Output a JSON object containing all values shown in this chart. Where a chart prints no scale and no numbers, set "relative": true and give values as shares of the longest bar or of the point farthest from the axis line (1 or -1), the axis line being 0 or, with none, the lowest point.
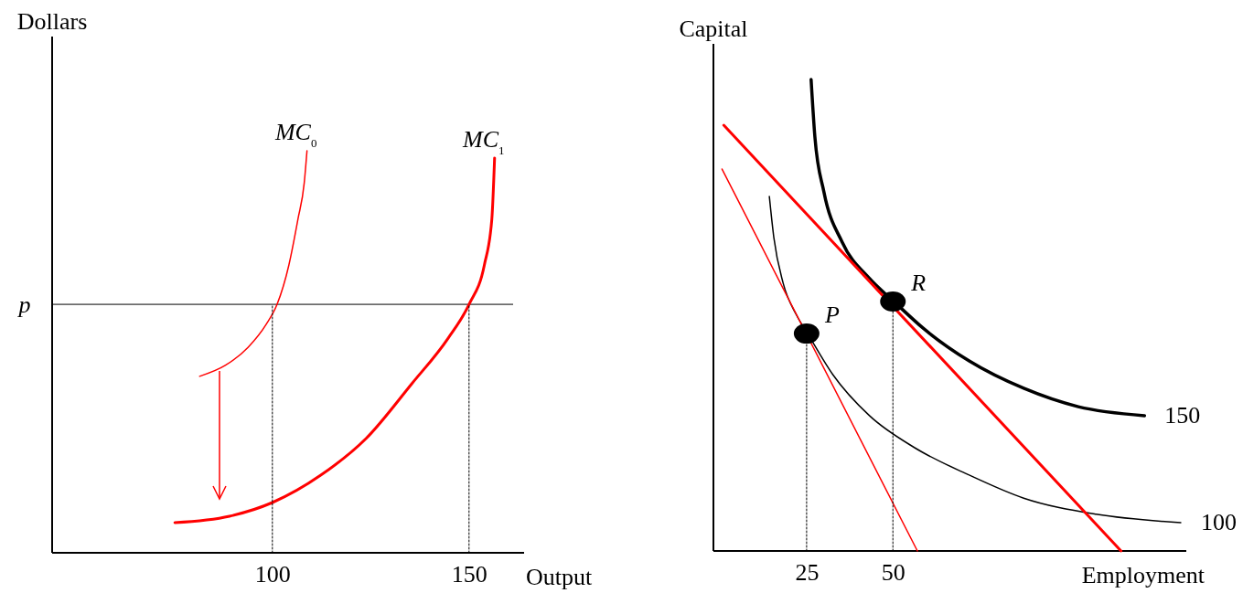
{
  "chart_data": [
    {
      "type": "line",
      "relative": true,
      "xlabel": "Output",
      "ylabel": "Dollars",
      "xlim": [
        44,
        164
      ],
      "xticks": [
        100,
        150
      ],
      "tick_labels": "x",
      "grid": false,
      "ref_lines": [
        {
          "axis": "y",
          "value": 0.618,
          "label": "p",
          "color": "#000000"
        }
      ],
      "series": [
        {
          "name": "MC$_{0}$",
          "color": "#ff0000",
          "x": [
            81.5,
            88.0,
            93.8,
            98.4,
            101.2,
            104.2,
            106.5,
            108.1,
            108.8
          ],
          "values": [
            0.439,
            0.466,
            0.511,
            0.568,
            0.618,
            0.716,
            0.83,
            0.92,
            1.0
          ]
        },
        {
          "name": "MC$_{1}$",
          "color": "#ff0000",
          "x": [
            75.2,
            89.1,
            100,
            112.3,
            123.8,
            135.4,
            144.7,
            150,
            153.9,
            155.8,
            156.5
          ],
          "values": [
            0.075,
            0.091,
            0.125,
            0.193,
            0.284,
            0.42,
            0.534,
            0.618,
            0.716,
            0.83,
            0.982
          ]
        },
        {
          "color": "#000000",
          "line_style": "dotted",
          "x": [
            100,
            100
          ],
          "values": [
            0,
            0.618
          ]
        },
        {
          "color": "#000000",
          "line_style": "dotted",
          "x": [
            150,
            150
          ],
          "values": [
            0,
            0.618
          ]
        }
      ]
    },
    {
      "type": "line",
      "relative": true,
      "xlabel": "Employment",
      "ylabel": "Capital",
      "xlim": [
        -2,
        135
      ],
      "xticks": [
        25,
        50
      ],
      "tick_labels": "x",
      "grid": false,
      "series": [
        {
          "name": "150",
          "color": "#000000",
          "x": [
            26.3,
            27.4,
            30,
            35.3,
            43.2,
            50.3,
            59,
            72.1,
            87.9,
            103.7,
            122.9
          ],
          "values": [
            1.0,
            0.878,
            0.762,
            0.655,
            0.578,
            0.529,
            0.471,
            0.403,
            0.345,
            0.306,
            0.287
          ]
        },
        {
          "name": "100",
          "color": "#000000",
          "x": [
            14.2,
            15.5,
            18.2,
            22.1,
            25.3,
            32.6,
            43.2,
            56.3,
            72.1,
            87.9,
            108.9,
            133.4
          ],
          "values": [
            0.752,
            0.665,
            0.568,
            0.5,
            0.461,
            0.374,
            0.287,
            0.219,
            0.161,
            0.112,
            0.078,
            0.06
          ]
        },
        {
          "color": "#ff0000",
          "x": [
            1.0,
            116.1
          ],
          "values": [
            0.903,
            0
          ]
        },
        {
          "color": "#ff0000",
          "x": [
            0.5,
            57.1
          ],
          "values": [
            0.81,
            0
          ]
        },
        {
          "color": "#000000",
          "line_style": "dotted",
          "x": [
            25,
            25
          ],
          "values": [
            0,
            0.461
          ]
        },
        {
          "color": "#000000",
          "line_style": "dotted",
          "x": [
            50,
            50
          ],
          "values": [
            0,
            0.529
          ]
        },
        {
          "type": "scatter",
          "marker": "circle",
          "name": "P",
          "color": "#000000",
          "x": [
            25
          ],
          "values": [
            0.461
          ]
        },
        {
          "type": "scatter",
          "marker": "circle",
          "name": "R",
          "color": "#000000",
          "x": [
            50
          ],
          "values": [
            0.529
          ]
        }
      ]
    }
  ]
}
